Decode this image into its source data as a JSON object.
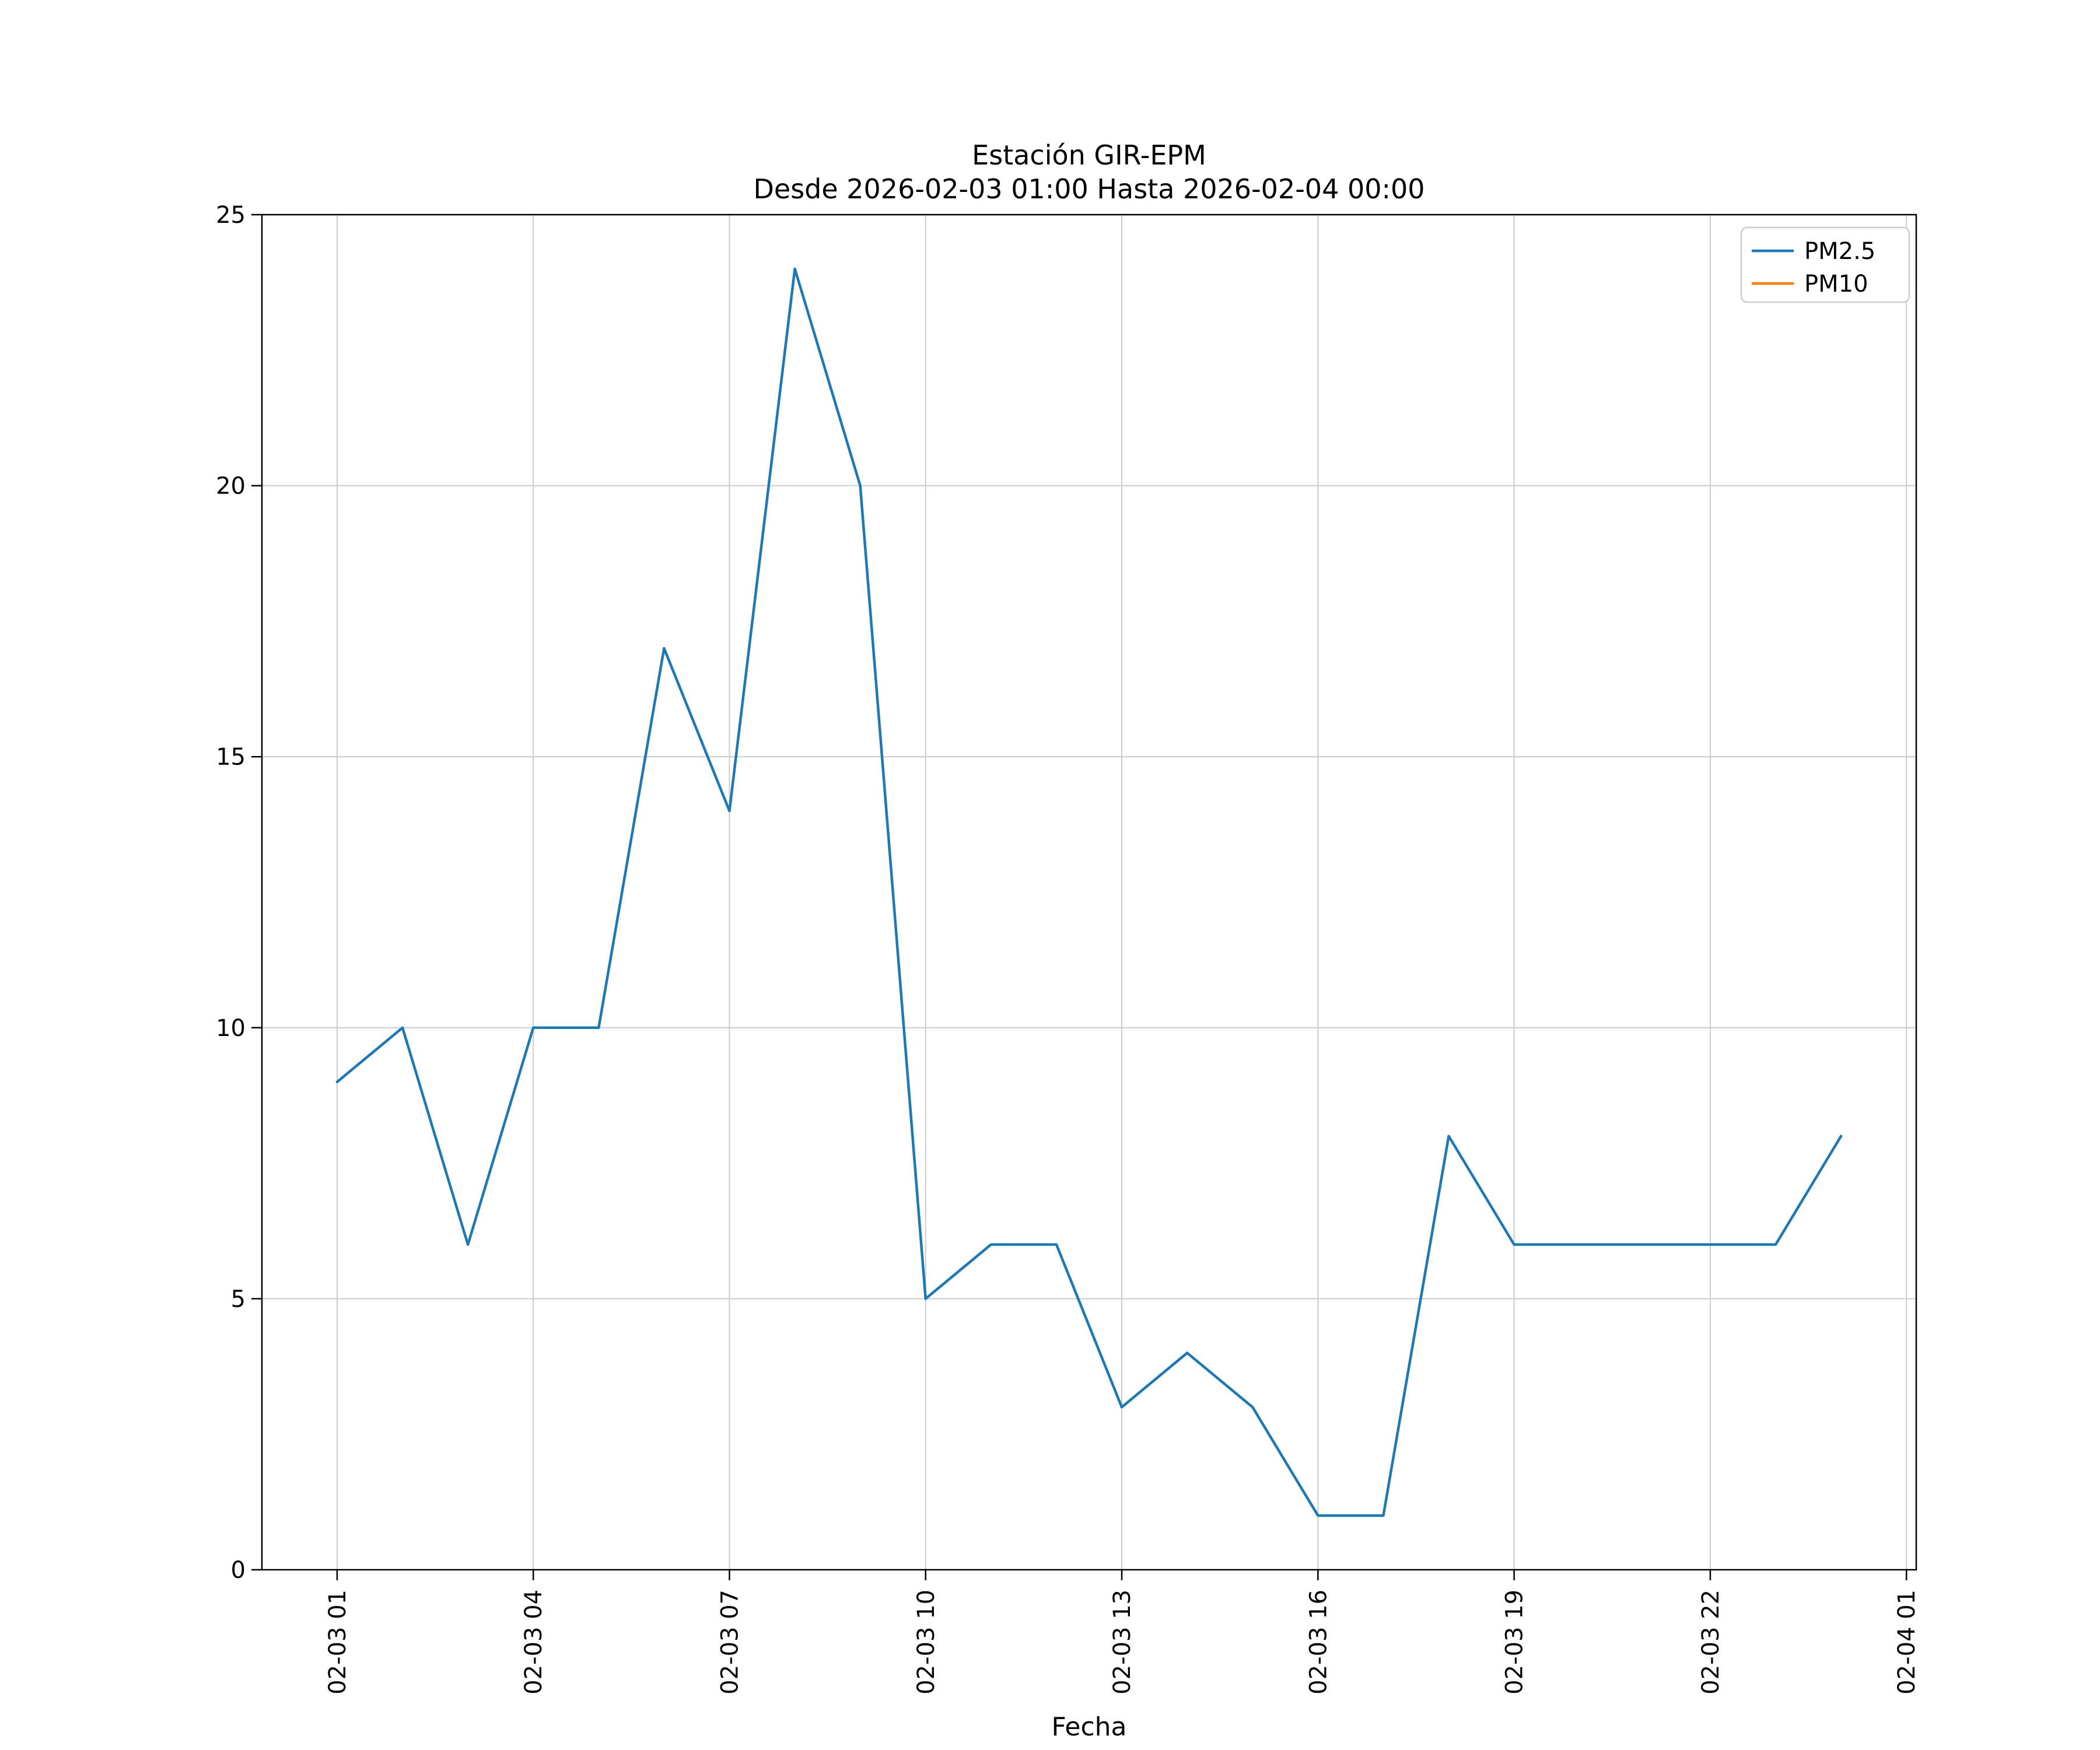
{
  "title": {
    "line1": "Estación GIR-EPM",
    "line2": "Desde 2026-02-03 01:00 Hasta 2026-02-04 00:00"
  },
  "axes": {
    "xlabel": "Fecha"
  },
  "colors": {
    "pm25": "#1f77b4",
    "pm10": "#ff7f0e",
    "grid": "#cccccc",
    "frame": "#000000",
    "legend_border": "#cccccc"
  },
  "chart_data": {
    "type": "line",
    "title": "Estación GIR-EPM",
    "subtitle": "Desde 2026-02-03 01:00 Hasta 2026-02-04 00:00",
    "xlabel": "Fecha",
    "ylabel": "",
    "xlim": [
      -0.15,
      25.15
    ],
    "ylim": [
      0,
      25
    ],
    "grid": true,
    "legend_position": "upper right",
    "x_ticks": [
      {
        "value": 1,
        "label": "02-03 01"
      },
      {
        "value": 4,
        "label": "02-03 04"
      },
      {
        "value": 7,
        "label": "02-03 07"
      },
      {
        "value": 10,
        "label": "02-03 10"
      },
      {
        "value": 13,
        "label": "02-03 13"
      },
      {
        "value": 16,
        "label": "02-03 16"
      },
      {
        "value": 19,
        "label": "02-03 19"
      },
      {
        "value": 22,
        "label": "02-03 22"
      },
      {
        "value": 25,
        "label": "02-04 01"
      }
    ],
    "y_ticks": [
      0,
      5,
      10,
      15,
      20,
      25
    ],
    "series": [
      {
        "name": "PM2.5",
        "color": "#1f77b4",
        "x": [
          1,
          2,
          3,
          4,
          5,
          6,
          7,
          8,
          9,
          10,
          11,
          12,
          13,
          14,
          15,
          16,
          17,
          18,
          19,
          20,
          21,
          22,
          23,
          24
        ],
        "values": [
          9,
          10,
          6,
          10,
          10,
          17,
          14,
          24,
          20,
          5,
          6,
          6,
          3,
          4,
          3,
          1,
          1,
          8,
          6,
          6,
          6,
          6,
          6,
          8
        ]
      },
      {
        "name": "PM10",
        "color": "#ff7f0e",
        "x": [],
        "values": []
      }
    ]
  }
}
